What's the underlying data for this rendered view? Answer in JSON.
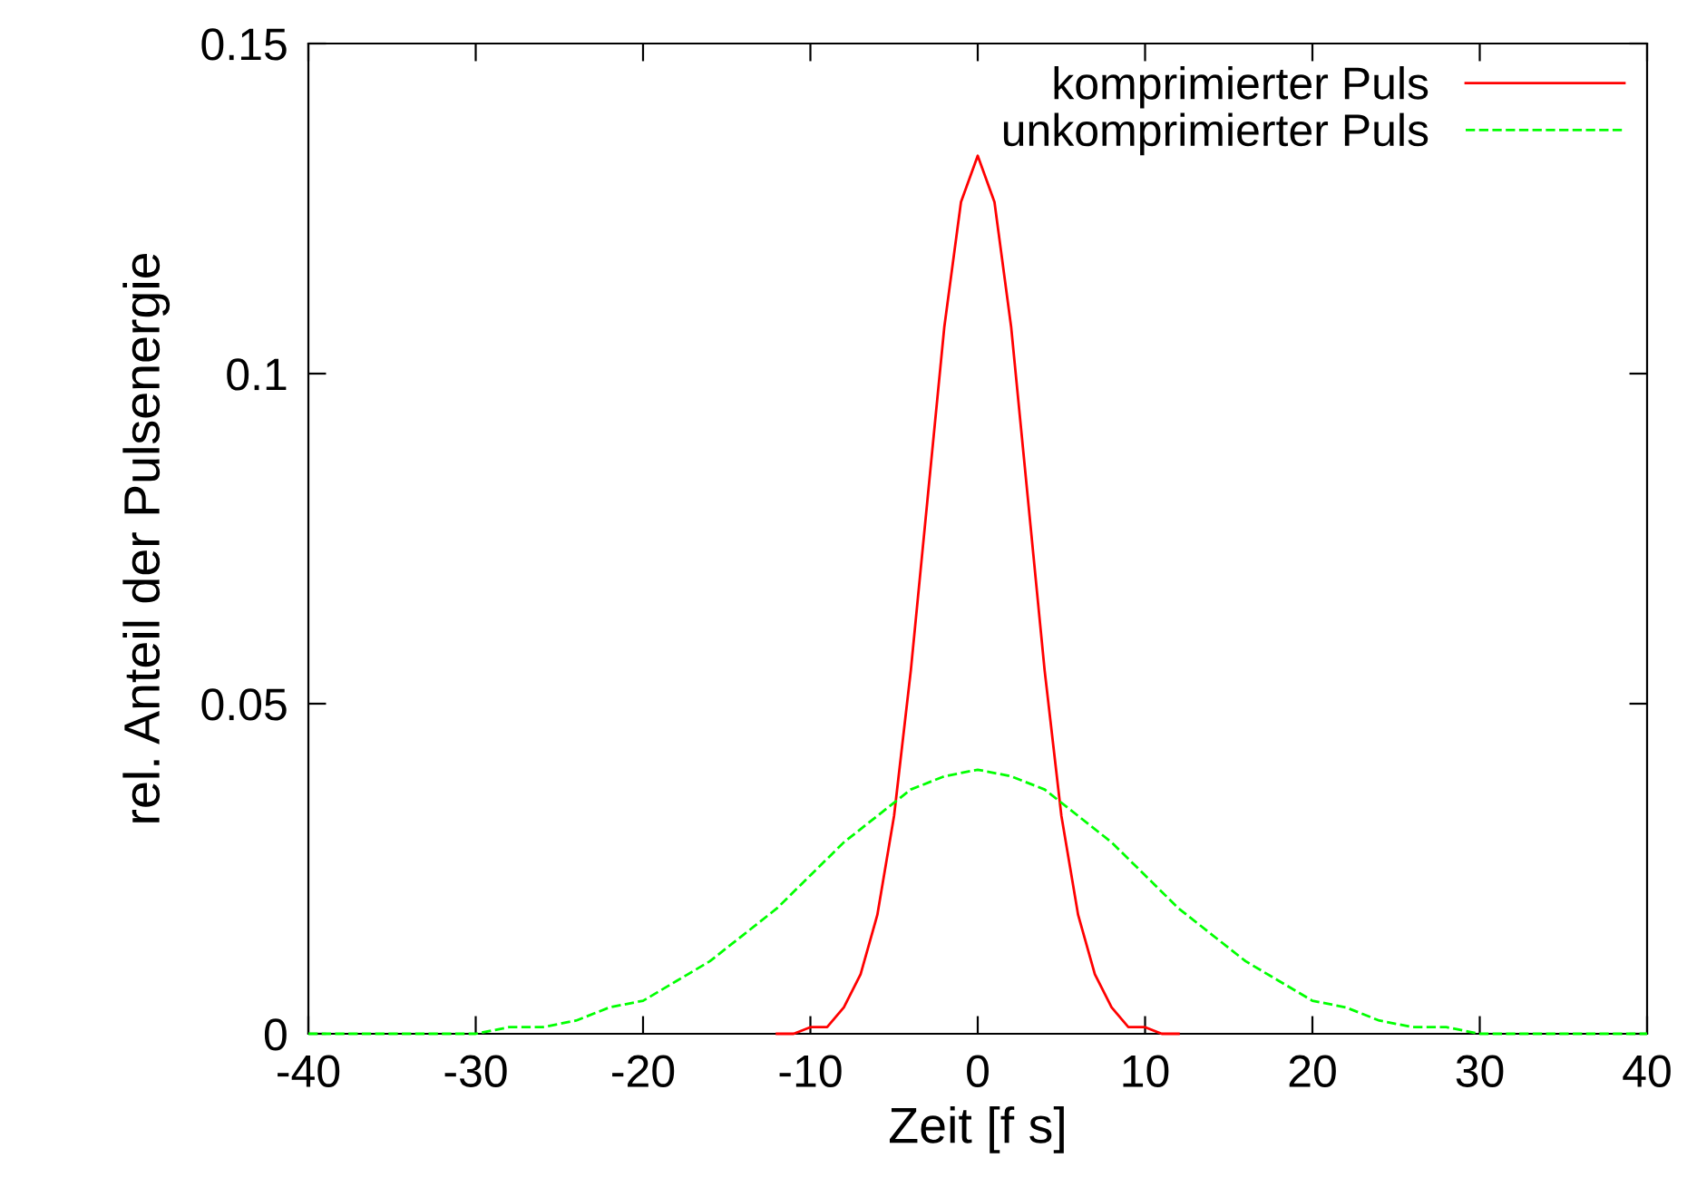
{
  "chart_data": {
    "type": "line",
    "xlabel": "Zeit [f s]",
    "ylabel": "rel. Anteil der Pulsenergie",
    "xlim": [
      -40,
      40
    ],
    "xticks": [
      -40,
      -30,
      -20,
      -10,
      0,
      10,
      20,
      30,
      40
    ],
    "ylim": [
      0,
      0.15
    ],
    "yticks": [
      0,
      0.05,
      0.1,
      0.15
    ],
    "grid": false,
    "legend": "top right",
    "marker": "none",
    "series": [
      {
        "name": "komprimierter Puls",
        "color": "#ff0000",
        "line_style": "solid",
        "x": [
          -12,
          -11,
          -10,
          -9,
          -8,
          -7,
          -6,
          -5,
          -4,
          -3,
          -2,
          -1,
          0,
          1,
          2,
          3,
          4,
          5,
          6,
          7,
          8,
          9,
          10,
          11,
          12
        ],
        "values": [
          0,
          0,
          0.001,
          0.001,
          0.004,
          0.009,
          0.018,
          0.033,
          0.055,
          0.081,
          0.107,
          0.126,
          0.133,
          0.126,
          0.107,
          0.081,
          0.055,
          0.033,
          0.018,
          0.009,
          0.004,
          0.001,
          0.001,
          0,
          0
        ]
      },
      {
        "name": "unkomprimierter Puls",
        "color": "#00ff00",
        "line_style": "dashed",
        "x": [
          -40,
          -38,
          -36,
          -34,
          -32,
          -30,
          -28,
          -26,
          -24,
          -22,
          -20,
          -18,
          -16,
          -14,
          -12,
          -10,
          -8,
          -6,
          -4,
          -2,
          0,
          2,
          4,
          6,
          8,
          10,
          12,
          14,
          16,
          18,
          20,
          22,
          24,
          26,
          28,
          30,
          32,
          34,
          36,
          38,
          40
        ],
        "values": [
          0,
          0,
          0,
          0,
          0,
          0,
          0.001,
          0.001,
          0.002,
          0.004,
          0.005,
          0.008,
          0.011,
          0.015,
          0.019,
          0.024,
          0.029,
          0.033,
          0.037,
          0.039,
          0.04,
          0.039,
          0.037,
          0.033,
          0.029,
          0.024,
          0.019,
          0.015,
          0.011,
          0.008,
          0.005,
          0.004,
          0.002,
          0.001,
          0.001,
          0,
          0,
          0,
          0,
          0,
          0
        ]
      }
    ]
  }
}
